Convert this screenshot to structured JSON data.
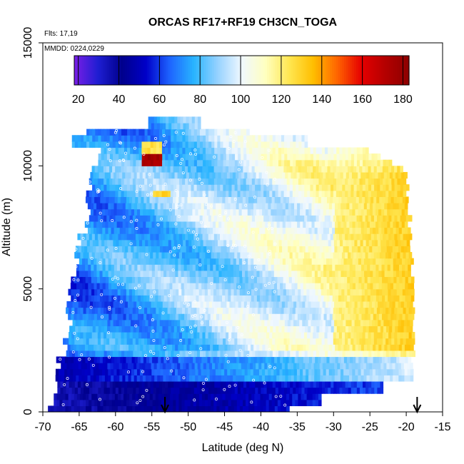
{
  "chart_data": {
    "type": "heatmap",
    "title": "ORCAS RF17+RF19 CH3CN_TOGA",
    "annotations": [
      "Flts: 17,19",
      "MMDD: 0224,0229"
    ],
    "xlabel": "Latitude (deg N)",
    "ylabel": "Altitude (m)",
    "xlim": [
      -70,
      -15
    ],
    "ylim": [
      0,
      15000
    ],
    "xticks": [
      -70,
      -65,
      -60,
      -55,
      -50,
      -45,
      -40,
      -35,
      -30,
      -25,
      -20,
      -15
    ],
    "xtick_labels": [
      "-70",
      "-65",
      "-60",
      "-55",
      "-50",
      "-45",
      "-40",
      "-35",
      "-30",
      "-25",
      "-20",
      "-15"
    ],
    "yticks": [
      0,
      5000,
      10000,
      15000
    ],
    "ytick_labels": [
      "0",
      "5000",
      "10000",
      "15000"
    ],
    "colorbar": {
      "min": 18,
      "max": 183,
      "ticks": [
        20,
        40,
        60,
        80,
        100,
        120,
        140,
        160,
        180
      ],
      "tick_labels": [
        "20",
        "40",
        "60",
        "80",
        "100",
        "120",
        "140",
        "160",
        "180"
      ],
      "colors": [
        "#7a1ee6",
        "#1e1ed2",
        "#00008c",
        "#0000c8",
        "#1e64ff",
        "#28b4ff",
        "#96d2ff",
        "#f0f8ff",
        "#ffffc0",
        "#ffe650",
        "#ffbe00",
        "#ff6400",
        "#e60000",
        "#b40000",
        "#8c0000"
      ]
    },
    "arrows_at_latitude": [
      -53.2,
      -18.5
    ],
    "grid": false,
    "legend": "colorbar at top"
  }
}
